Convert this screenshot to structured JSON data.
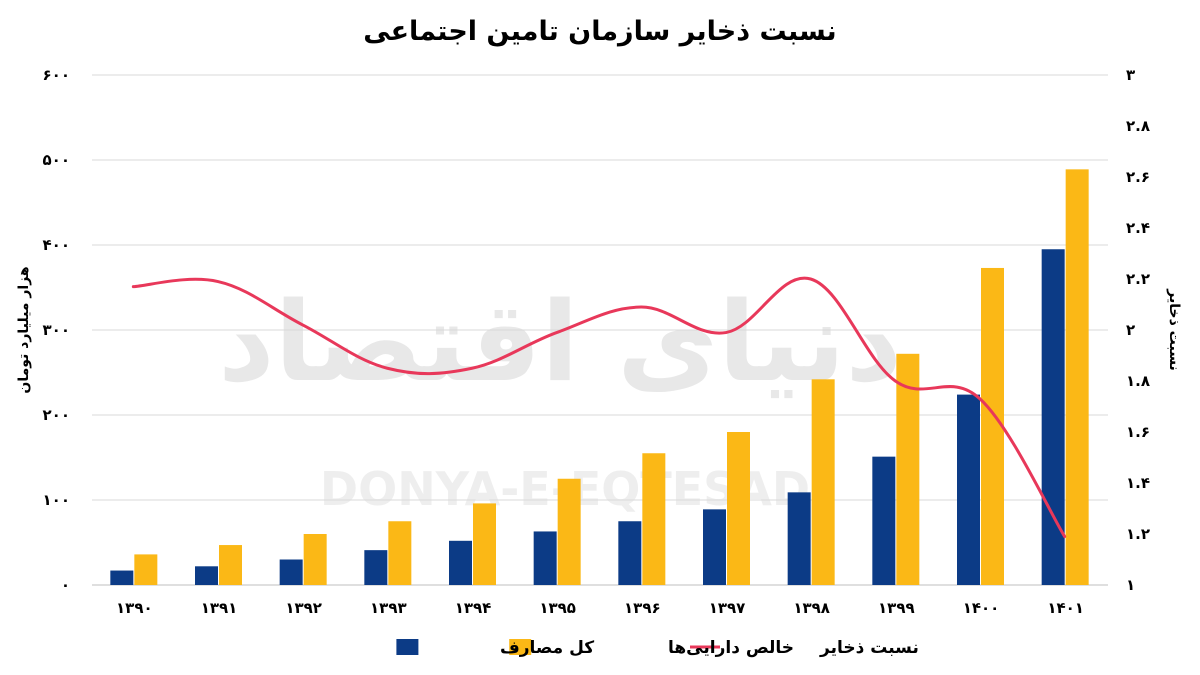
{
  "chart_data": {
    "type": "bar",
    "title": "نسبت ذخایر سازمان تامین اجتماعی",
    "ylabel": "هزار میلیارد تومان",
    "y2label": "نسبت ذخایر",
    "categories": [
      "۱۳۹۰",
      "۱۳۹۱",
      "۱۳۹۲",
      "۱۳۹۳",
      "۱۳۹۴",
      "۱۳۹۵",
      "۱۳۹۶",
      "۱۳۹۷",
      "۱۳۹۸",
      "۱۳۹۹",
      "۱۴۰۰",
      "۱۴۰۱"
    ],
    "ylim": [
      0,
      600
    ],
    "y2lim": [
      1,
      3
    ],
    "yticks": [
      "۰",
      "۱۰۰",
      "۲۰۰",
      "۳۰۰",
      "۴۰۰",
      "۵۰۰",
      "۶۰۰"
    ],
    "y2ticks": [
      "۱",
      "۱.۲",
      "۱.۴",
      "۱.۶",
      "۱.۸",
      "۲",
      "۲.۲",
      "۲.۴",
      "۲.۶",
      "۲.۸",
      "۳"
    ],
    "series": [
      {
        "name": "کل مصارف",
        "type": "bar",
        "color": "#0c3b86",
        "values": [
          17,
          22,
          30,
          41,
          52,
          63,
          75,
          89,
          109,
          151,
          224,
          395
        ]
      },
      {
        "name": "خالص دارایی‌ها",
        "type": "bar",
        "color": "#fbb816",
        "values": [
          36,
          47,
          60,
          75,
          96,
          125,
          155,
          180,
          242,
          272,
          373,
          489
        ]
      },
      {
        "name": "نسبت ذخایر",
        "type": "line",
        "axis": "right",
        "color": "#e8385a",
        "values": [
          2.17,
          2.19,
          2.02,
          1.85,
          1.85,
          1.99,
          2.09,
          1.99,
          2.2,
          1.8,
          1.73,
          1.19
        ]
      }
    ],
    "grid": true,
    "legend_position": "bottom"
  },
  "watermark": {
    "latin": "DONYA-E-EQTESAD",
    "persian": "دنیای اقتصاد"
  }
}
